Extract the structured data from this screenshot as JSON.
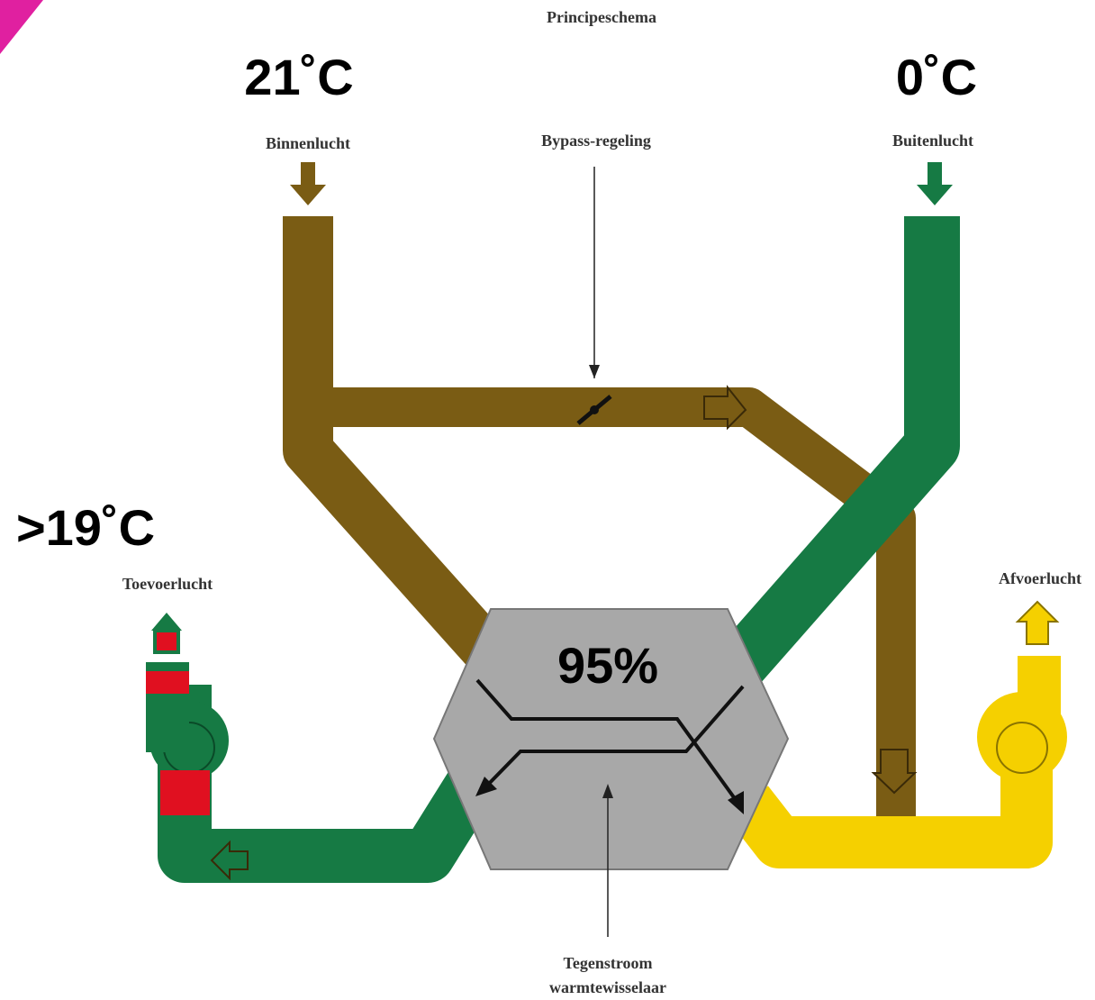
{
  "title": "Principeschema",
  "temperatures": {
    "indoor": "21˚C",
    "outdoor": "0˚C",
    "supply": ">19˚C"
  },
  "labels": {
    "indoor_air": "Binnenlucht",
    "bypass": "Bypass-regeling",
    "outdoor_air": "Buitenlucht",
    "supply_air": "Toevoerlucht",
    "exhaust_air": "Afvoerlucht"
  },
  "exchanger": {
    "efficiency": "95%",
    "label": [
      "Tegenstroom",
      "warmtewisselaar"
    ]
  }
}
